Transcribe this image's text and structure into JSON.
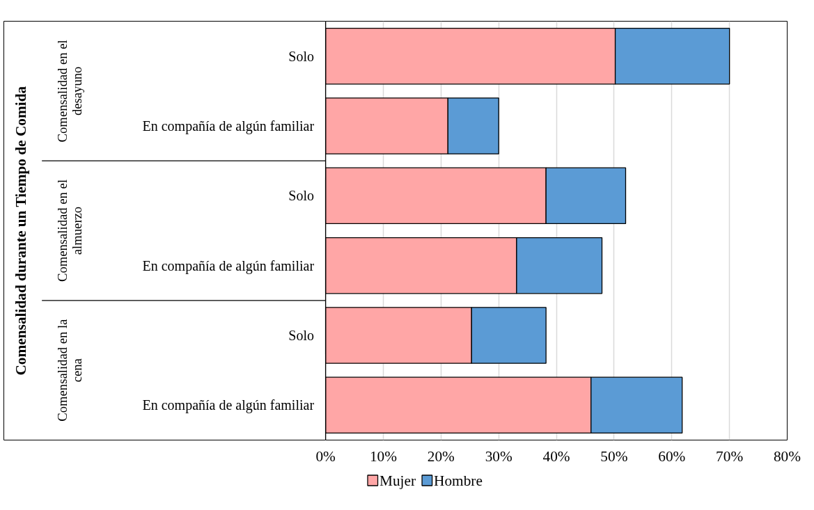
{
  "chart_data": {
    "type": "bar",
    "orientation": "horizontal",
    "stacked": true,
    "categories": [
      "Solo",
      "En compañía de algún familiar",
      "Solo",
      "En compañía de algún familiar",
      "Solo",
      "En compañía de algún familiar"
    ],
    "annotations": [
      "Comensalidad durante un Tiempo de Comida",
      "Comensalidad en el desayuno",
      "Comensalidad en el almuerzo",
      "Comensalidad en la cena"
    ],
    "series": [
      {
        "name": "Mujer",
        "color": "#ffa6a6",
        "values": [
          50.2,
          21.2,
          38.2,
          33.1,
          25.3,
          46.0
        ]
      },
      {
        "name": "Hombre",
        "color": "#5b9bd5",
        "values": [
          19.8,
          8.8,
          13.8,
          14.8,
          12.9,
          15.8
        ]
      }
    ],
    "xlim": [
      0,
      80
    ],
    "xticks": [
      {
        "value": 0,
        "label": "0%"
      },
      {
        "value": 10,
        "label": "10%"
      },
      {
        "value": 20,
        "label": "20%"
      },
      {
        "value": 30,
        "label": "30%"
      },
      {
        "value": 40,
        "label": "40%"
      },
      {
        "value": 50,
        "label": "50%"
      },
      {
        "value": 60,
        "label": "60%"
      },
      {
        "value": 70,
        "label": "70%"
      },
      {
        "value": 80,
        "label": "80%"
      }
    ],
    "grid": "x",
    "legend": "bottom"
  }
}
